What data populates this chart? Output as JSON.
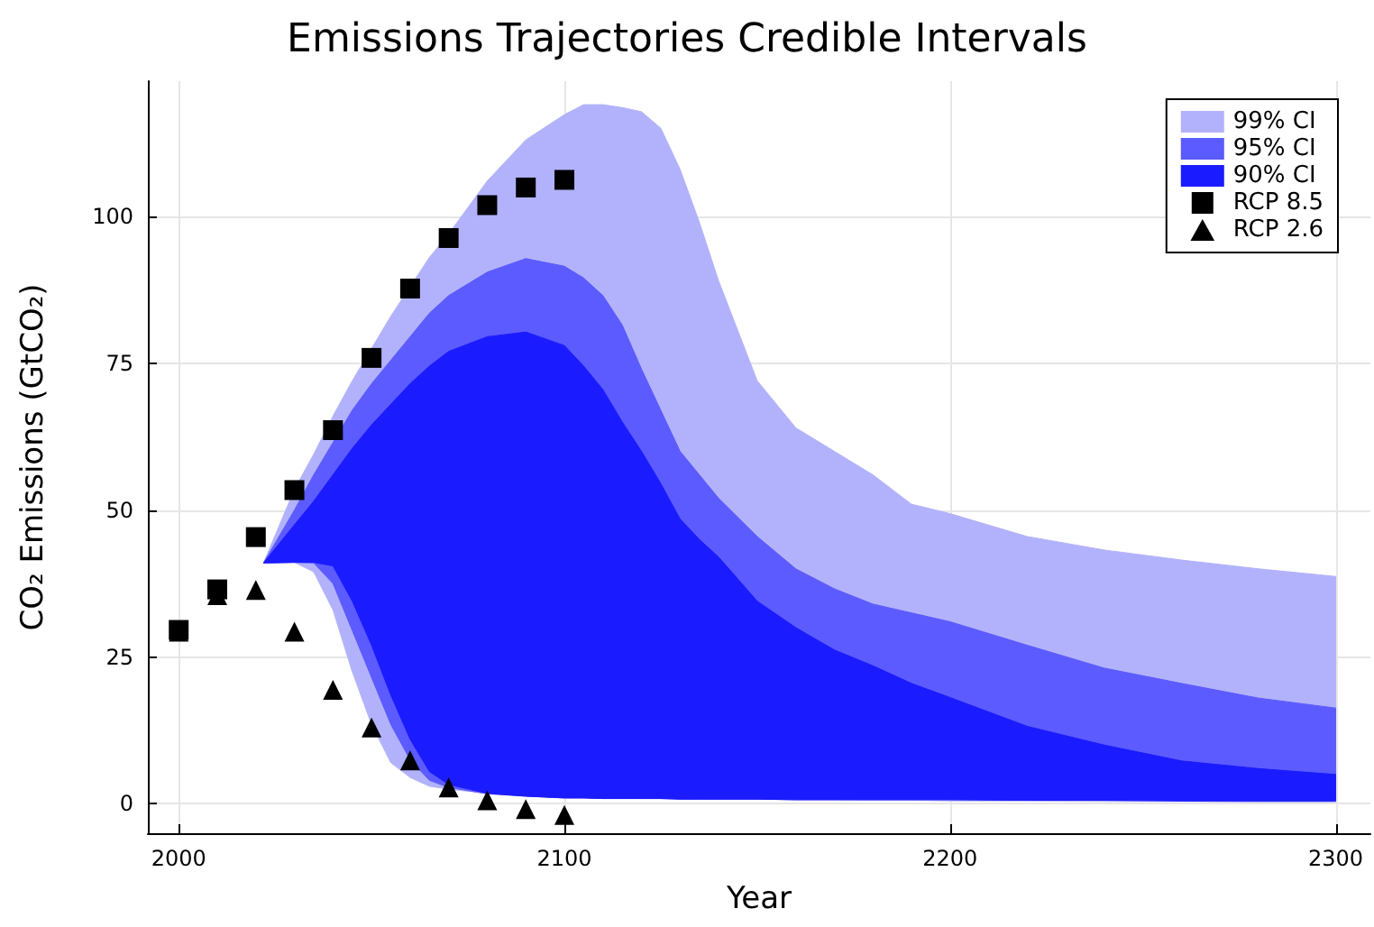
{
  "chart_data": {
    "type": "area",
    "title": "Emissions Trajectories Credible Intervals",
    "xlabel": "Year",
    "ylabel": "CO₂ Emissions (GtCO₂)",
    "xlim": [
      1992,
      2309
    ],
    "xticks": [
      2000,
      2100,
      2200,
      2300
    ],
    "ylim": [
      -5,
      123
    ],
    "yticks": [
      0,
      25,
      50,
      75,
      100
    ],
    "grid": true,
    "legend": "top right",
    "series": [
      {
        "name": "99% CI",
        "color": "#b2b2fc",
        "x": [
          2022,
          2030,
          2035,
          2040,
          2045,
          2050,
          2055,
          2060,
          2065,
          2070,
          2080,
          2090,
          2100,
          2105,
          2110,
          2115,
          2120,
          2125,
          2130,
          2135,
          2140,
          2150,
          2160,
          2170,
          2180,
          2190,
          2200,
          2220,
          2240,
          2260,
          2280,
          2300
        ],
        "values": [
          null,
          null,
          null,
          null,
          null,
          null,
          null,
          null,
          null,
          null,
          null,
          null,
          null,
          null,
          null,
          null,
          null,
          null,
          null,
          null,
          null,
          null,
          null,
          null,
          null,
          null,
          null,
          null,
          null,
          null,
          null,
          null
        ],
        "upper": [
          41,
          53.5,
          59.5,
          66,
          72,
          77.5,
          83,
          88,
          93,
          97,
          106,
          113,
          117.3,
          119,
          119,
          118.5,
          117.8,
          115,
          108,
          99,
          89,
          72,
          64,
          60,
          56,
          51,
          49.4,
          45.5,
          43.2,
          41.5,
          40,
          38.7
        ],
        "lower": [
          41,
          41.1,
          39.5,
          33,
          22.5,
          13.5,
          7,
          4.5,
          3,
          2.5,
          1.8,
          1.4,
          1.2,
          1.1,
          1,
          1,
          0.9,
          0.9,
          0.9,
          0.8,
          0.8,
          0.8,
          0.7,
          0.7,
          0.6,
          0.6,
          0.5,
          0.5,
          0.4,
          0.4,
          0.3,
          0.3
        ]
      },
      {
        "name": "95% CI",
        "color": "#5b5bff",
        "x": [
          2022,
          2030,
          2035,
          2040,
          2045,
          2050,
          2055,
          2060,
          2065,
          2070,
          2080,
          2090,
          2100,
          2105,
          2110,
          2115,
          2120,
          2125,
          2130,
          2135,
          2140,
          2150,
          2160,
          2170,
          2180,
          2190,
          2200,
          2220,
          2240,
          2260,
          2280,
          2300
        ],
        "values": [
          null,
          null,
          null,
          null,
          null,
          null,
          null,
          null,
          null,
          null,
          null,
          null,
          null,
          null,
          null,
          null,
          null,
          null,
          null,
          null,
          null,
          null,
          null,
          null,
          null,
          null,
          null,
          null,
          null,
          null,
          null,
          null
        ],
        "upper": [
          41,
          50,
          56,
          61.5,
          67,
          71.5,
          75.5,
          79.5,
          83.5,
          86.5,
          90.5,
          92.8,
          91.5,
          89.5,
          86.5,
          81.5,
          74,
          67,
          60,
          56,
          52,
          45.5,
          40,
          36.6,
          34,
          32.5,
          31,
          27,
          23.1,
          20.5,
          18,
          16.3
        ],
        "lower": [
          41,
          41.1,
          41,
          37.5,
          29.5,
          21.5,
          13.5,
          7.5,
          4,
          2.8,
          1.7,
          1.3,
          1,
          1,
          0.9,
          0.9,
          0.9,
          0.9,
          0.8,
          0.8,
          0.8,
          0.8,
          0.7,
          0.7,
          0.7,
          0.7,
          0.7,
          0.6,
          0.6,
          0.5,
          0.5,
          0.5
        ]
      },
      {
        "name": "90% CI",
        "color": "#1b1bff",
        "x": [
          2022,
          2030,
          2035,
          2040,
          2045,
          2050,
          2055,
          2060,
          2065,
          2070,
          2080,
          2090,
          2100,
          2105,
          2110,
          2115,
          2120,
          2125,
          2130,
          2135,
          2140,
          2150,
          2160,
          2170,
          2180,
          2190,
          2200,
          2220,
          2240,
          2260,
          2280,
          2300
        ],
        "values": [
          null,
          null,
          null,
          null,
          null,
          null,
          null,
          null,
          null,
          null,
          null,
          null,
          null,
          null,
          null,
          null,
          null,
          null,
          null,
          null,
          null,
          null,
          null,
          null,
          null,
          null,
          null,
          null,
          null,
          null,
          null,
          null
        ],
        "upper": [
          41,
          47.5,
          51.5,
          56,
          60.5,
          64.5,
          68,
          71.5,
          74.5,
          77,
          79.5,
          80.3,
          78,
          74.5,
          70.5,
          65,
          60,
          54.5,
          48.5,
          45,
          42,
          34.5,
          30,
          26.2,
          23.5,
          20.5,
          18.1,
          13.2,
          10,
          7.3,
          6,
          5
        ],
        "lower": [
          41,
          41.1,
          41.1,
          40.5,
          34.5,
          27,
          18.5,
          11,
          5.5,
          3.3,
          1.8,
          1.3,
          1,
          1,
          0.9,
          0.9,
          0.9,
          0.9,
          0.8,
          0.8,
          0.8,
          0.8,
          0.7,
          0.7,
          0.7,
          0.7,
          0.7,
          0.6,
          0.6,
          0.5,
          0.5,
          0.5
        ]
      },
      {
        "name": "RCP 8.5",
        "type": "scatter",
        "color": "#000000",
        "marker": "square",
        "x": [
          2000,
          2010,
          2020,
          2030,
          2040,
          2050,
          2060,
          2070,
          2080,
          2090,
          2100
        ],
        "values": [
          29.6,
          36.5,
          45.4,
          53.4,
          63.6,
          75.9,
          87.7,
          96.3,
          101.9,
          104.9,
          106.2
        ]
      },
      {
        "name": "RCP 2.6",
        "type": "scatter",
        "color": "#000000",
        "marker": "triangle",
        "x": [
          2000,
          2010,
          2020,
          2030,
          2040,
          2050,
          2060,
          2070,
          2080,
          2090,
          2100
        ],
        "values": [
          29.3,
          35.5,
          36.4,
          29.3,
          19.4,
          13,
          7.4,
          2.8,
          0.6,
          -0.9,
          -1.9
        ]
      }
    ]
  }
}
